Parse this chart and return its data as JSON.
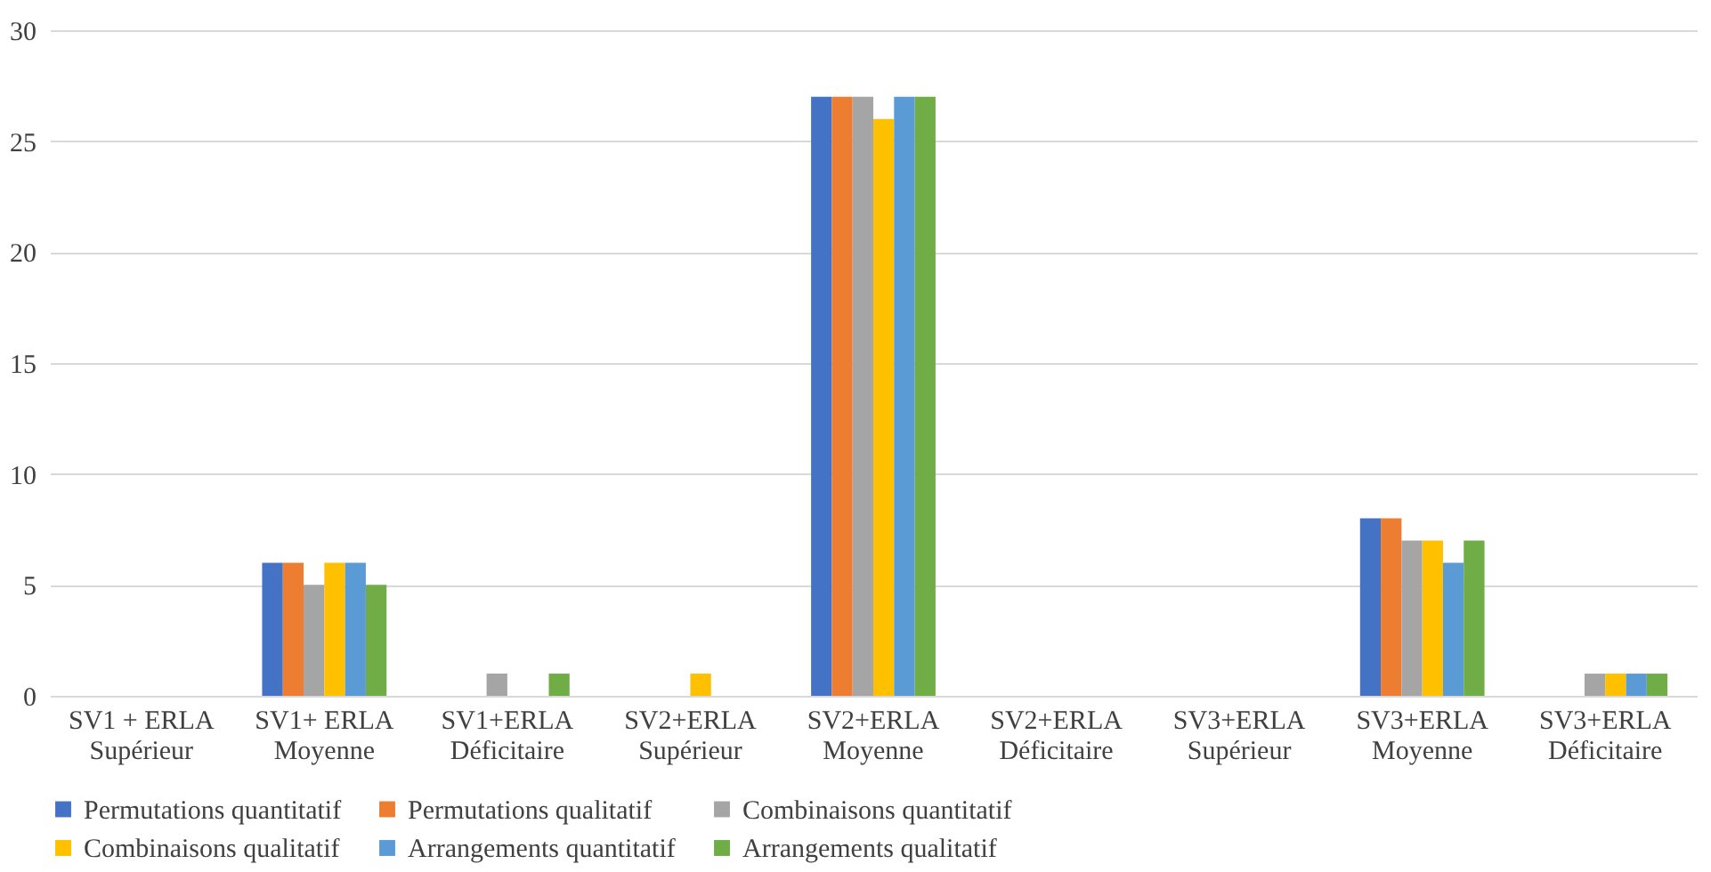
{
  "chart_data": {
    "type": "bar",
    "categories": [
      "SV1 + ERLA Supérieur",
      "SV1+ ERLA Moyenne",
      "SV1+ERLA Déficitaire",
      "SV2+ERLA Supérieur",
      "SV2+ERLA Moyenne",
      "SV2+ERLA Déficitaire",
      "SV3+ERLA Supérieur",
      "SV3+ERLA Moyenne",
      "SV3+ERLA Déficitaire"
    ],
    "series": [
      {
        "name": "Permutations quantitatif",
        "color": "#4472c4",
        "values": [
          0,
          6,
          0,
          0,
          27,
          0,
          0,
          8,
          0
        ]
      },
      {
        "name": "Permutations qualitatif",
        "color": "#ed7d31",
        "values": [
          0,
          6,
          0,
          0,
          27,
          0,
          0,
          8,
          0
        ]
      },
      {
        "name": "Combinaisons quantitatif",
        "color": "#a5a5a5",
        "values": [
          0,
          5,
          1,
          0,
          27,
          0,
          0,
          7,
          1
        ]
      },
      {
        "name": "Combinaisons qualitatif",
        "color": "#ffc000",
        "values": [
          0,
          6,
          0,
          1,
          26,
          0,
          0,
          7,
          1
        ]
      },
      {
        "name": "Arrangements quantitatif",
        "color": "#5b9bd5",
        "values": [
          0,
          6,
          0,
          0,
          27,
          0,
          0,
          6,
          1
        ]
      },
      {
        "name": "Arrangements qualitatif",
        "color": "#70ad47",
        "values": [
          0,
          5,
          1,
          0,
          27,
          0,
          0,
          7,
          1
        ]
      }
    ],
    "ylim": [
      0,
      30
    ],
    "yticks": [
      0,
      5,
      10,
      15,
      20,
      25,
      30
    ],
    "grid": "y",
    "legend": "bottom"
  }
}
